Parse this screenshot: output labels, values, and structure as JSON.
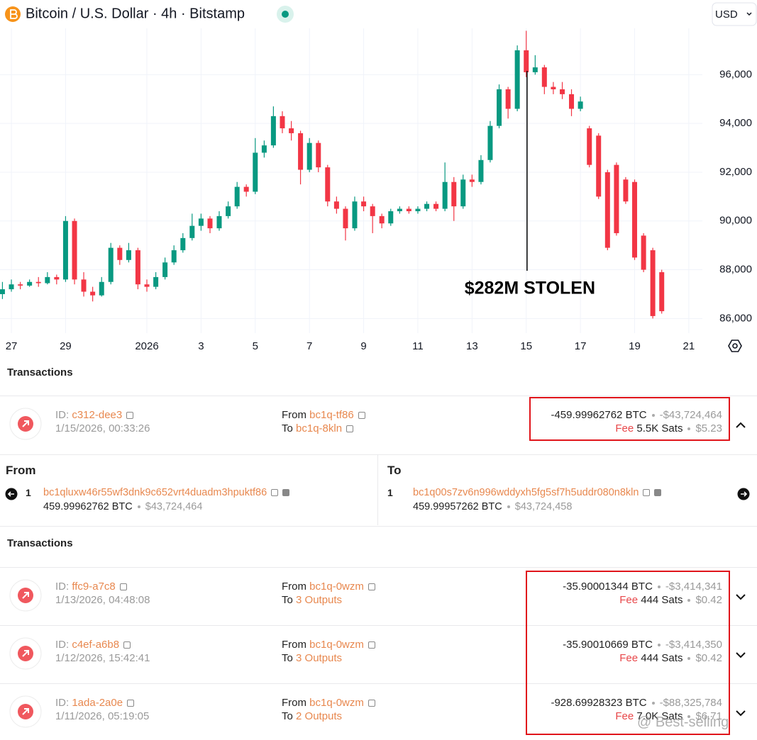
{
  "header": {
    "title": "Bitcoin / U.S. Dollar · 4h · Bitstamp",
    "currency": "USD"
  },
  "chart_data": {
    "type": "candlestick",
    "x": [
      -5.33,
      -5,
      -4.67,
      -4.33,
      -4,
      -3.67,
      -3.33,
      -3,
      -2.67,
      -2.33,
      -2,
      -1.67,
      -1.33,
      -1,
      -0.67,
      -0.33,
      0,
      0.33,
      0.67,
      1,
      1.33,
      1.67,
      2,
      2.33,
      2.67,
      3,
      3.33,
      3.67,
      4,
      4.33,
      4.67,
      5,
      5.33,
      5.67,
      6,
      6.33,
      6.67,
      7,
      7.33,
      7.67,
      8,
      8.33,
      8.67,
      9,
      9.33,
      9.67,
      10,
      10.33,
      10.67,
      11,
      11.33,
      11.67,
      12,
      12.33,
      12.67,
      13,
      13.33,
      13.67,
      14,
      14.33,
      14.67,
      15,
      15.33,
      15.67,
      16,
      16.33,
      16.67,
      17,
      17.33,
      17.67,
      18,
      18.33,
      18.67,
      19
    ],
    "open": [
      87000,
      87200,
      87400,
      87350,
      87500,
      87450,
      87700,
      87600,
      90000,
      87600,
      87100,
      86950,
      87500,
      88900,
      88400,
      88800,
      87400,
      87300,
      87700,
      88300,
      88800,
      89300,
      89800,
      90100,
      89700,
      90200,
      90600,
      91400,
      91200,
      92800,
      93100,
      94300,
      93800,
      93600,
      92100,
      93200,
      92200,
      90800,
      90500,
      89700,
      90800,
      90600,
      90200,
      89900,
      90400,
      90500,
      90400,
      90500,
      90700,
      90500,
      91600,
      90600,
      91700,
      91600,
      92500,
      93900,
      95400,
      94600,
      97000,
      96100,
      96300,
      95500,
      95400,
      95200,
      94600,
      93800,
      93500,
      92000,
      92300,
      91700,
      91600,
      89400,
      88800,
      87900
    ],
    "high": [
      87500,
      87600,
      87500,
      87600,
      87700,
      87900,
      87800,
      90200,
      90100,
      87900,
      87300,
      87700,
      89100,
      89000,
      89100,
      88900,
      87600,
      87900,
      88500,
      89000,
      89500,
      90300,
      90300,
      90200,
      90400,
      90800,
      91600,
      91500,
      93400,
      93300,
      94700,
      94500,
      94100,
      93700,
      93400,
      93300,
      92300,
      91000,
      90600,
      91000,
      91000,
      90700,
      90300,
      90500,
      90600,
      90600,
      90600,
      90800,
      90800,
      92400,
      91800,
      91900,
      91900,
      92700,
      94100,
      95600,
      95500,
      97200,
      97800,
      96800,
      96400,
      95700,
      95700,
      95400,
      95100,
      93900,
      93600,
      92100,
      92400,
      91800,
      91700,
      89500,
      88900,
      88000
    ],
    "low": [
      86800,
      87100,
      87200,
      87300,
      87300,
      87400,
      87400,
      87500,
      87400,
      86900,
      86700,
      86900,
      87400,
      88200,
      88300,
      87200,
      87100,
      87200,
      87600,
      88200,
      88700,
      89200,
      89600,
      89500,
      89600,
      90100,
      90500,
      91000,
      91100,
      92600,
      93000,
      93600,
      93300,
      91500,
      92000,
      92000,
      90600,
      90300,
      89200,
      89600,
      90400,
      89500,
      89700,
      89800,
      90300,
      90300,
      90300,
      90400,
      90400,
      90400,
      90000,
      90500,
      91400,
      91500,
      92400,
      93800,
      94200,
      94500,
      95900,
      96000,
      95200,
      95200,
      95000,
      94300,
      94500,
      92200,
      90900,
      88800,
      89400,
      90700,
      88400,
      87900,
      86000,
      86200
    ],
    "close": [
      87200,
      87400,
      87350,
      87500,
      87450,
      87700,
      87600,
      90000,
      87600,
      87100,
      86950,
      87500,
      88900,
      88400,
      88800,
      87400,
      87300,
      87700,
      88300,
      88800,
      89300,
      89800,
      90100,
      89700,
      90200,
      90600,
      91400,
      91200,
      92800,
      93100,
      94300,
      93800,
      93600,
      92100,
      93200,
      92200,
      90800,
      90500,
      89700,
      90800,
      90600,
      90200,
      89900,
      90400,
      90500,
      90400,
      90500,
      90700,
      90500,
      91600,
      90600,
      91700,
      91600,
      92500,
      93900,
      95400,
      94600,
      97000,
      96100,
      96300,
      95500,
      95400,
      95200,
      94600,
      94900,
      92300,
      91000,
      88900,
      89500,
      90800,
      88500,
      88000,
      86100,
      86300
    ],
    "up_color": "#089981",
    "down_color": "#f23645",
    "xlim": [
      -5.42,
      20.5
    ],
    "xticks": [
      {
        "value": -5,
        "label": "27"
      },
      {
        "value": -3,
        "label": "29"
      },
      {
        "value": 0,
        "label": "2026"
      },
      {
        "value": 2,
        "label": "3"
      },
      {
        "value": 4,
        "label": "5"
      },
      {
        "value": 6,
        "label": "7"
      },
      {
        "value": 8,
        "label": "9"
      },
      {
        "value": 10,
        "label": "11"
      },
      {
        "value": 12,
        "label": "13"
      },
      {
        "value": 14,
        "label": "15"
      },
      {
        "value": 16,
        "label": "17"
      },
      {
        "value": 18,
        "label": "19"
      },
      {
        "value": 20,
        "label": "21"
      }
    ],
    "ylim": [
      85400,
      97900
    ],
    "yticks": [
      {
        "value": 86000,
        "label": "86,000"
      },
      {
        "value": 88000,
        "label": "88,000"
      },
      {
        "value": 90000,
        "label": "90,000"
      },
      {
        "value": 92000,
        "label": "92,000"
      },
      {
        "value": 94000,
        "label": "94,000"
      },
      {
        "value": 96000,
        "label": "96,000"
      }
    ],
    "grid": true,
    "annotation": {
      "text": "$282M STOLEN",
      "x": 14.03
    }
  },
  "section1": {
    "title": "Transactions",
    "transactions": [
      {
        "id_label": "ID:",
        "id": "c312-dee3",
        "date": "1/15/2026, 00:33:26",
        "from_label": "From",
        "from": "bc1q-tf86",
        "to_label": "To",
        "to": "bc1q-8kln",
        "amount": "-459.99962762 BTC",
        "usd": "-$43,724,464",
        "fee_label": "Fee",
        "fee": "5.5K Sats",
        "fee_usd": "$5.23"
      }
    ]
  },
  "detail": {
    "from": {
      "title": "From",
      "index": "1",
      "address": "bc1qluxw46r55wf3dnk9c652vrt4duadm3hpuktf86",
      "amount": "459.99962762 BTC",
      "usd": "$43,724,464"
    },
    "to": {
      "title": "To",
      "index": "1",
      "address": "bc1q00s7zv6n996wddyxh5fg5sf7h5uddr080n8kln",
      "amount": "459.99957262 BTC",
      "usd": "$43,724,458"
    }
  },
  "section2": {
    "title": "Transactions",
    "transactions": [
      {
        "id_label": "ID:",
        "id": "ffc9-a7c8",
        "date": "1/13/2026, 04:48:08",
        "from_label": "From",
        "from": "bc1q-0wzm",
        "to_label": "To",
        "to": "3 Outputs",
        "amount": "-35.90001344 BTC",
        "usd": "-$3,414,341",
        "fee_label": "Fee",
        "fee": "444 Sats",
        "fee_usd": "$0.42"
      },
      {
        "id_label": "ID:",
        "id": "c4ef-a6b8",
        "date": "1/12/2026, 15:42:41",
        "from_label": "From",
        "from": "bc1q-0wzm",
        "to_label": "To",
        "to": "3 Outputs",
        "amount": "-35.90010669 BTC",
        "usd": "-$3,414,350",
        "fee_label": "Fee",
        "fee": "444 Sats",
        "fee_usd": "$0.42"
      },
      {
        "id_label": "ID:",
        "id": "1ada-2a0e",
        "date": "1/11/2026, 05:19:05",
        "from_label": "From",
        "from": "bc1q-0wzm",
        "to_label": "To",
        "to": "2 Outputs",
        "amount": "-928.69928323 BTC",
        "usd": "-$88,325,784",
        "fee_label": "Fee",
        "fee": "7.0K Sats",
        "fee_usd": "$6.71"
      }
    ]
  },
  "watermark": "@ Best-selling"
}
